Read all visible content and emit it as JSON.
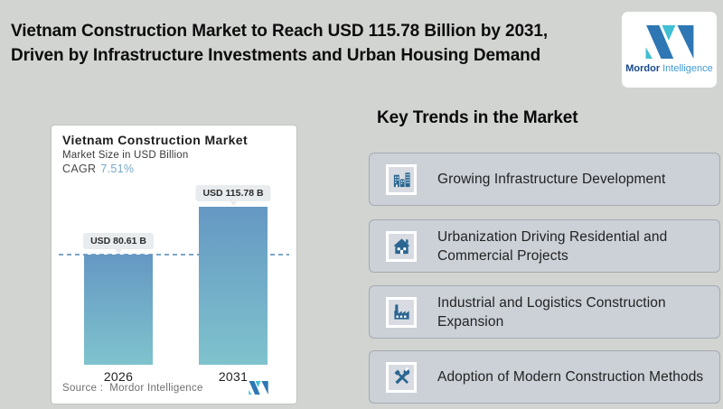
{
  "page": {
    "background": "#d2d4d1"
  },
  "header": {
    "title_line1": "Vietnam Construction Market to Reach USD 115.78 Billion by 2031,",
    "title_line2": "Driven by Infrastructure Investments and Urban Housing Demand",
    "logo": {
      "icon": "mordor-m-logo",
      "brand_primary": "Mordor",
      "brand_secondary": "Intelligence",
      "blue": "#2e77b4",
      "teal": "#41bfd3"
    }
  },
  "chart_card": {
    "title": "Vietnam Construction Market",
    "subtitle": "Market Size in USD Billion",
    "cagr_label": "CAGR",
    "cagr_value": "7.51%",
    "cagr_color": "#76a7c8",
    "source_label": "Source :",
    "source_value": "Mordor Intelligence"
  },
  "chart_data": {
    "type": "bar",
    "title": "Vietnam Construction Market",
    "ylabel": "Market Size in USD Billion",
    "cagr": "7.51%",
    "categories": [
      "2026",
      "2031"
    ],
    "values": [
      80.61,
      115.78
    ],
    "value_labels": [
      "USD 80.61 B",
      "USD 115.78 B"
    ],
    "unit": "USD Billion",
    "ylim": [
      0,
      120
    ],
    "grid": false,
    "legend": false,
    "bar_gradient_top": "#6598c3",
    "bar_gradient_bottom": "#7fc3cd",
    "reference_line": {
      "value": 80.61,
      "style": "dashed",
      "color": "#7aa6c8"
    },
    "source": "Mordor Intelligence"
  },
  "trends": {
    "heading": "Key Trends in the Market",
    "card_bg": "#ccd1d8",
    "icon_color": "#2a6690",
    "items": [
      {
        "icon": "buildings-icon",
        "label": "Growing Infrastructure Development"
      },
      {
        "icon": "house-icon",
        "label": "Urbanization Driving Residential and Commercial Projects"
      },
      {
        "icon": "factory-icon",
        "label": "Industrial and Logistics Construction Expansion"
      },
      {
        "icon": "tools-icon",
        "label": "Adoption of Modern Construction Methods"
      }
    ]
  }
}
